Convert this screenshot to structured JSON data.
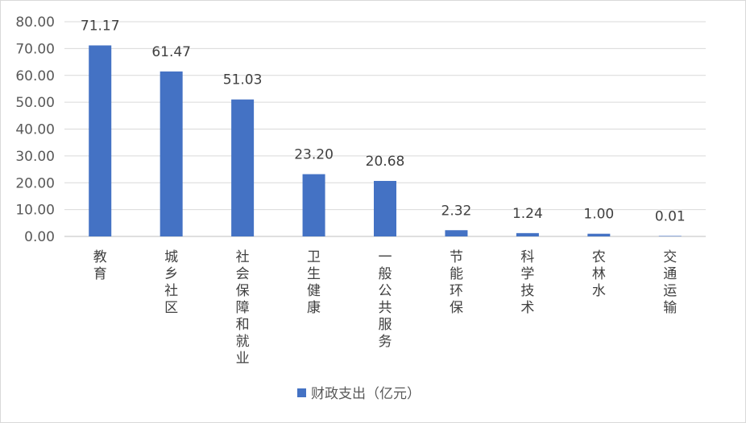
{
  "chart_data": {
    "type": "bar",
    "categories": [
      "教育",
      "城乡社区",
      "社会保障和就业",
      "卫生健康",
      "一般公共服务",
      "节能环保",
      "科学技术",
      "农林水",
      "交通运输"
    ],
    "series": [
      {
        "name": "财政支出（亿元）",
        "values": [
          71.17,
          61.47,
          51.03,
          23.2,
          20.68,
          2.32,
          1.24,
          1.0,
          0.01
        ],
        "color": "#4472C4"
      }
    ],
    "data_labels": [
      "71.17",
      "61.47",
      "51.03",
      "23.20",
      "20.68",
      "2.32",
      "1.24",
      "1.00",
      "0.01"
    ],
    "y_ticks": [
      "0.00",
      "10.00",
      "20.00",
      "30.00",
      "40.00",
      "50.00",
      "60.00",
      "70.00",
      "80.00"
    ],
    "ylim": [
      0,
      80
    ],
    "grid": true,
    "legend_position": "bottom"
  }
}
